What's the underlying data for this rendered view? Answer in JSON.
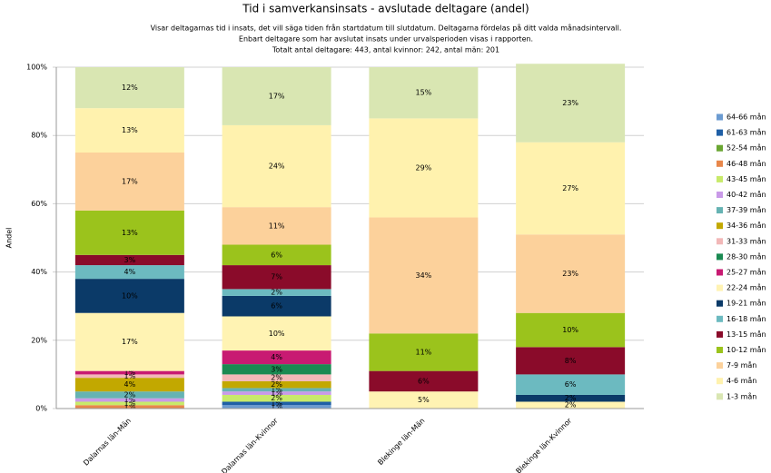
{
  "chart_data": {
    "type": "stacked-bar",
    "title": "Tid i samverkansinsats - avslutade deltagare (andel)",
    "subtitle": [
      "Visar deltagarnas tid i insats, det vill säga tiden från startdatum till slutdatum. Deltagarna fördelas på ditt valda månadsintervall.",
      "Enbart deltagare som har avslutat insats under urvalsperioden visas i rapporten.",
      "Totalt antal deltagare: 443, antal kvinnor: 242, antal män: 201"
    ],
    "y_label": "Andel",
    "categories": [
      "Dalarnas län-Män",
      "Dalarnas län-Kvinnor",
      "Blekinge län-Män",
      "Blekinge län-Kvinnor"
    ],
    "ylim": [
      0,
      100
    ],
    "yticks": [
      {
        "value": 0,
        "label": "0%"
      },
      {
        "value": 20,
        "label": "20%"
      },
      {
        "value": 40,
        "label": "40%"
      },
      {
        "value": 60,
        "label": "60%"
      },
      {
        "value": 80,
        "label": "80%"
      },
      {
        "value": 100,
        "label": "100%"
      }
    ],
    "grid": true,
    "legend": "right",
    "series": [
      {
        "name": "64-66 mån",
        "color": "#6b9bd1",
        "values": [
          0,
          1,
          0,
          0
        ],
        "value_labels": [
          null,
          "1%",
          null,
          null
        ]
      },
      {
        "name": "61-63 mån",
        "color": "#1f5fa6",
        "values": [
          0,
          1,
          0,
          0
        ],
        "value_labels": [
          null,
          "1%",
          null,
          null
        ]
      },
      {
        "name": "52-54 mån",
        "color": "#6aa632",
        "values": [
          0,
          0,
          0,
          0
        ],
        "value_labels": [
          null,
          null,
          null,
          null
        ]
      },
      {
        "name": "46-48 mån",
        "color": "#e8874a",
        "values": [
          1,
          0,
          0,
          0
        ],
        "value_labels": [
          "1%",
          null,
          null,
          null
        ]
      },
      {
        "name": "43-45 mån",
        "color": "#c8ea6a",
        "values": [
          1,
          2,
          0,
          0
        ],
        "value_labels": [
          "1%",
          "2%",
          null,
          null
        ]
      },
      {
        "name": "40-42 mån",
        "color": "#c99ae8",
        "values": [
          1,
          1,
          0,
          0
        ],
        "value_labels": [
          "1%",
          "1%",
          null,
          null
        ]
      },
      {
        "name": "37-39 mån",
        "color": "#66b3b3",
        "values": [
          2,
          1,
          0,
          0
        ],
        "value_labels": [
          "2%",
          "1%",
          null,
          null
        ]
      },
      {
        "name": "34-36 mån",
        "color": "#c2a800",
        "values": [
          4,
          2,
          0,
          0
        ],
        "value_labels": [
          "4%",
          "2%",
          null,
          null
        ]
      },
      {
        "name": "31-33 mån",
        "color": "#f2b8b8",
        "values": [
          1,
          2,
          0,
          0
        ],
        "value_labels": [
          "1%",
          "2%",
          null,
          null
        ]
      },
      {
        "name": "28-30 mån",
        "color": "#1a8a52",
        "values": [
          0,
          3,
          0,
          0
        ],
        "value_labels": [
          null,
          "3%",
          null,
          null
        ]
      },
      {
        "name": "25-27 mån",
        "color": "#c81a72",
        "values": [
          1,
          4,
          0,
          0
        ],
        "value_labels": [
          "1%",
          "4%",
          null,
          null
        ]
      },
      {
        "name": "22-24 mån",
        "color": "#fff3b3",
        "values": [
          17,
          10,
          5,
          2
        ],
        "value_labels": [
          "17%",
          "10%",
          "5%",
          "2%"
        ]
      },
      {
        "name": "19-21 mån",
        "color": "#0b3a68",
        "values": [
          10,
          6,
          0,
          2
        ],
        "value_labels": [
          "10%",
          "6%",
          null,
          "2%"
        ]
      },
      {
        "name": "16-18 mån",
        "color": "#6cbac0",
        "values": [
          4,
          2,
          0,
          6
        ],
        "value_labels": [
          "4%",
          "2%",
          null,
          "6%"
        ]
      },
      {
        "name": "13-15 mån",
        "color": "#8a0b2a",
        "values": [
          3,
          7,
          6,
          8
        ],
        "value_labels": [
          "3%",
          "7%",
          "6%",
          "8%"
        ]
      },
      {
        "name": "10-12 mån",
        "color": "#9bc31c",
        "values": [
          13,
          6,
          11,
          10
        ],
        "value_labels": [
          "13%",
          "6%",
          "11%",
          "10%"
        ]
      },
      {
        "name": "7-9 mån",
        "color": "#fcd19b",
        "values": [
          17,
          11,
          34,
          23
        ],
        "value_labels": [
          "17%",
          "11%",
          "34%",
          "23%"
        ]
      },
      {
        "name": "4-6 mån",
        "color": "#fff2ae",
        "values": [
          13,
          24,
          29,
          27
        ],
        "value_labels": [
          "13%",
          "24%",
          "29%",
          "27%"
        ]
      },
      {
        "name": "1-3 mån",
        "color": "#d9e6b2",
        "values": [
          12,
          17,
          15,
          23
        ],
        "value_labels": [
          "12%",
          "17%",
          "15%",
          "23%"
        ]
      }
    ]
  }
}
